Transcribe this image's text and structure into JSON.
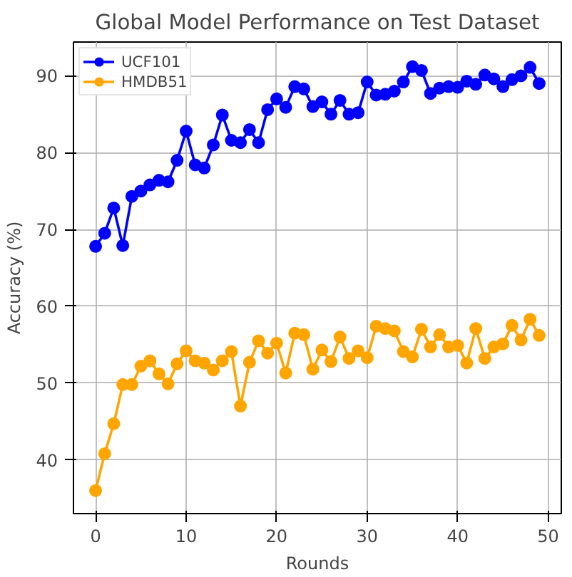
{
  "chart_data": {
    "type": "line",
    "title": "Global Model Performance on Test Dataset",
    "xlabel": "Rounds",
    "ylabel": "Accuracy (%)",
    "x": [
      0,
      1,
      2,
      3,
      4,
      5,
      6,
      7,
      8,
      9,
      10,
      11,
      12,
      13,
      14,
      15,
      16,
      17,
      18,
      19,
      20,
      21,
      22,
      23,
      24,
      25,
      26,
      27,
      28,
      29,
      30,
      31,
      32,
      33,
      34,
      35,
      36,
      37,
      38,
      39,
      40,
      41,
      42,
      43,
      44,
      45,
      46,
      47,
      48,
      49
    ],
    "series": [
      {
        "name": "UCF101",
        "color": "#0000ff",
        "values": [
          67.8,
          69.5,
          72.8,
          67.9,
          74.3,
          75.0,
          75.8,
          76.4,
          76.2,
          79.0,
          82.8,
          78.4,
          78.0,
          81.0,
          84.9,
          81.6,
          81.3,
          83.0,
          81.3,
          85.6,
          87.0,
          85.9,
          88.6,
          88.3,
          86.0,
          86.6,
          85.0,
          86.8,
          85.0,
          85.2,
          89.2,
          87.5,
          87.6,
          88.0,
          89.2,
          91.2,
          90.7,
          87.7,
          88.4,
          88.6,
          88.5,
          89.3,
          88.9,
          90.1,
          89.6,
          88.6,
          89.5,
          90.0,
          91.1,
          89.0
        ]
      },
      {
        "name": "HMDB51",
        "color": "#ffa500",
        "values": [
          36.0,
          40.8,
          44.7,
          49.8,
          49.8,
          52.2,
          52.9,
          51.2,
          49.9,
          52.5,
          54.2,
          52.9,
          52.6,
          51.7,
          52.9,
          54.1,
          47.0,
          52.7,
          55.5,
          53.9,
          55.2,
          51.3,
          56.5,
          56.3,
          51.8,
          54.3,
          52.8,
          56.0,
          53.2,
          54.2,
          53.3,
          57.4,
          57.1,
          56.8,
          54.1,
          53.4,
          57.0,
          54.7,
          56.3,
          54.7,
          54.9,
          52.6,
          57.1,
          53.2,
          54.7,
          55.1,
          57.5,
          55.6,
          58.3,
          56.2
        ]
      }
    ],
    "xlim": [
      -2.45,
      51.45
    ],
    "ylim": [
      33.0,
      94.4
    ],
    "xticks": [
      0,
      10,
      20,
      30,
      40,
      50
    ],
    "yticks": [
      40,
      50,
      60,
      70,
      80,
      90
    ],
    "grid": true,
    "legend": "top left",
    "marker": "circle",
    "line_style": "solid"
  }
}
